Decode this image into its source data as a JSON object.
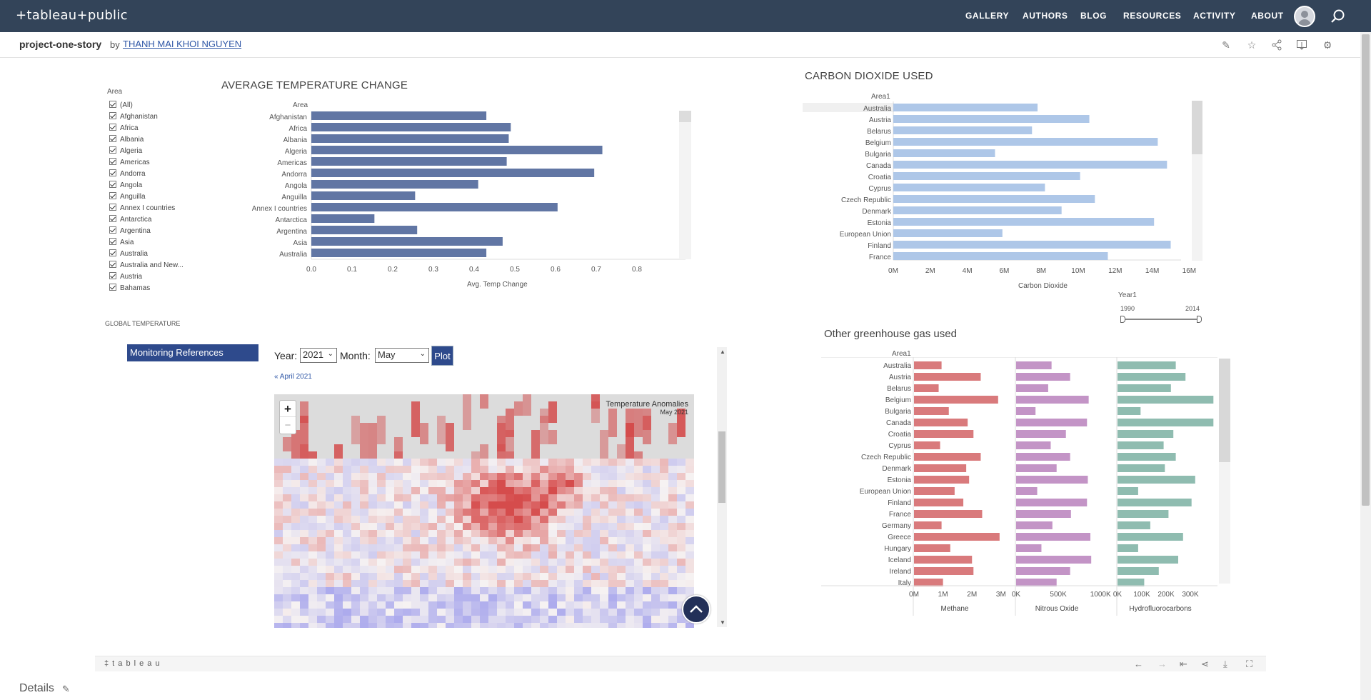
{
  "topbar": {
    "logo": "+tableau+public",
    "nav": [
      "GALLERY",
      "AUTHORS",
      "BLOG",
      "RESOURCES",
      "ACTIVITY",
      "ABOUT"
    ]
  },
  "subbar": {
    "title": "project-one-story",
    "by": "by",
    "author": "THANH MAI KHOI NGUYEN"
  },
  "filter": {
    "title": "Area",
    "items": [
      "(All)",
      "Afghanistan",
      "Africa",
      "Albania",
      "Algeria",
      "Americas",
      "Andorra",
      "Angola",
      "Anguilla",
      "Annex I countries",
      "Antarctica",
      "Argentina",
      "Asia",
      "Australia",
      "Australia and New...",
      "Austria",
      "Bahamas"
    ]
  },
  "temp_chart": {
    "title": "AVERAGE TEMPERATURE CHANGE",
    "header": "Area",
    "xlabel": "Avg. Temp Change"
  },
  "co2_chart": {
    "title": "CARBON DIOXIDE USED",
    "header": "Area1",
    "xlabel": "Carbon Dioxide"
  },
  "year_slider": {
    "label": "Year1",
    "min": "1990",
    "max": "2014"
  },
  "global_temp_label": "GLOBAL TEMPERATURE",
  "monitoring_button": "Monitoring References",
  "map_panel": {
    "year_label": "Year:",
    "year_value": "2021",
    "month_label": "Month:",
    "month_value": "May",
    "plot_button": "Plot",
    "prev_link": "« April 2021",
    "overlay_title": "Temperature Anomalies",
    "overlay_sub": "May 2021",
    "zoom_in": "+",
    "zoom_out": "−"
  },
  "ghg_chart": {
    "title": "Other greenhouse gas used",
    "header": "Area1",
    "col_labels": [
      "Methane",
      "Nitrous Oxide",
      "Hydrofluorocarbons"
    ]
  },
  "bottombar": {
    "logo": "‡ t a b l e a u"
  },
  "details": {
    "label": "Details"
  },
  "colors": {
    "topbar": "#334459",
    "temp_bar": "#6176a4",
    "co2_bar": "#aec7e8",
    "methane": "#d97a7c",
    "nitrous": "#c394c6",
    "hfc": "#8fbcb0",
    "button": "#2e4a8c"
  },
  "chart_data": [
    {
      "type": "bar",
      "title": "AVERAGE TEMPERATURE CHANGE",
      "xlabel": "Avg. Temp Change",
      "ylabel": "Area",
      "categories": [
        "Afghanistan",
        "Africa",
        "Albania",
        "Algeria",
        "Americas",
        "Andorra",
        "Angola",
        "Anguilla",
        "Annex I countries",
        "Antarctica",
        "Argentina",
        "Asia",
        "Australia"
      ],
      "values": [
        0.43,
        0.49,
        0.485,
        0.715,
        0.48,
        0.695,
        0.41,
        0.255,
        0.605,
        0.155,
        0.26,
        0.47,
        0.43
      ],
      "xlim": [
        0,
        0.9
      ],
      "ticks": [
        "0.0",
        "0.1",
        "0.2",
        "0.3",
        "0.4",
        "0.5",
        "0.6",
        "0.7",
        "0.8"
      ]
    },
    {
      "type": "bar",
      "title": "CARBON DIOXIDE USED",
      "xlabel": "Carbon Dioxide",
      "ylabel": "Area1",
      "categories": [
        "Australia",
        "Austria",
        "Belarus",
        "Belgium",
        "Bulgaria",
        "Canada",
        "Croatia",
        "Cyprus",
        "Czech Republic",
        "Denmark",
        "Estonia",
        "European Union",
        "Finland",
        "France"
      ],
      "values": [
        7.8,
        10.6,
        7.5,
        14.3,
        5.5,
        14.8,
        10.1,
        8.2,
        10.9,
        9.1,
        14.1,
        5.9,
        15.0,
        11.6
      ],
      "unit": "M",
      "xlim": [
        0,
        16
      ],
      "ticks": [
        "0M",
        "2M",
        "4M",
        "6M",
        "8M",
        "10M",
        "12M",
        "14M",
        "16M"
      ]
    },
    {
      "type": "bar",
      "title": "Other greenhouse gas used",
      "ylabel": "Area1",
      "categories": [
        "Australia",
        "Austria",
        "Belarus",
        "Belgium",
        "Bulgaria",
        "Canada",
        "Croatia",
        "Cyprus",
        "Czech Republic",
        "Denmark",
        "Estonia",
        "European Union",
        "Finland",
        "France",
        "Germany",
        "Greece",
        "Hungary",
        "Iceland",
        "Ireland",
        "Italy"
      ],
      "series": [
        {
          "name": "Methane",
          "values": [
            0.95,
            2.3,
            0.85,
            2.9,
            1.2,
            1.85,
            2.05,
            0.9,
            2.3,
            1.8,
            1.9,
            1.4,
            1.7,
            2.35,
            0.95,
            2.95,
            1.25,
            2.0,
            2.05,
            1.0
          ],
          "unit": "M",
          "xlim": [
            0,
            3.2
          ],
          "ticks": [
            "0M",
            "1M",
            "2M",
            "3M"
          ]
        },
        {
          "name": "Nitrous Oxide",
          "values": [
            420,
            640,
            380,
            860,
            230,
            840,
            590,
            410,
            640,
            480,
            850,
            250,
            840,
            650,
            430,
            880,
            300,
            890,
            640,
            480
          ],
          "unit": "K",
          "xlim": [
            0,
            1100
          ],
          "ticks": [
            "0K",
            "500K",
            "1000K"
          ]
        },
        {
          "name": "Hydrofluorocarbons",
          "values": [
            240,
            280,
            220,
            395,
            95,
            395,
            230,
            190,
            240,
            195,
            320,
            85,
            305,
            210,
            135,
            270,
            85,
            250,
            170,
            110
          ],
          "unit": "K",
          "xlim": [
            0,
            400
          ],
          "ticks": [
            "0K",
            "100K",
            "200K",
            "300K"
          ]
        }
      ]
    }
  ]
}
